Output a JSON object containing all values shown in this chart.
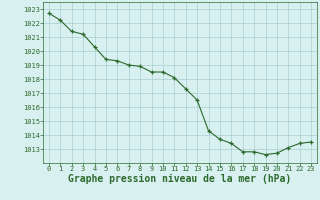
{
  "x": [
    0,
    1,
    2,
    3,
    4,
    5,
    6,
    7,
    8,
    9,
    10,
    11,
    12,
    13,
    14,
    15,
    16,
    17,
    18,
    19,
    20,
    21,
    22,
    23
  ],
  "y": [
    1022.7,
    1022.2,
    1021.4,
    1021.2,
    1020.3,
    1019.4,
    1019.3,
    1019.0,
    1018.9,
    1018.5,
    1018.5,
    1018.1,
    1017.3,
    1016.5,
    1014.3,
    1013.7,
    1013.4,
    1012.8,
    1012.8,
    1012.6,
    1012.7,
    1013.1,
    1013.4,
    1013.5
  ],
  "line_color": "#2d6a2d",
  "marker_color": "#2d6a2d",
  "bg_color": "#d8f0f0",
  "grid_color": "#aacfcf",
  "text_color": "#2d6a2d",
  "xlabel": "Graphe pression niveau de la mer (hPa)",
  "ylim_min": 1012.0,
  "ylim_max": 1023.5,
  "yticks": [
    1013,
    1014,
    1015,
    1016,
    1017,
    1018,
    1019,
    1020,
    1021,
    1022,
    1023
  ],
  "xticks": [
    0,
    1,
    2,
    3,
    4,
    5,
    6,
    7,
    8,
    9,
    10,
    11,
    12,
    13,
    14,
    15,
    16,
    17,
    18,
    19,
    20,
    21,
    22,
    23
  ],
  "tick_fontsize": 5.0,
  "xlabel_fontsize": 7.0,
  "xlabel_fontweight": "bold"
}
